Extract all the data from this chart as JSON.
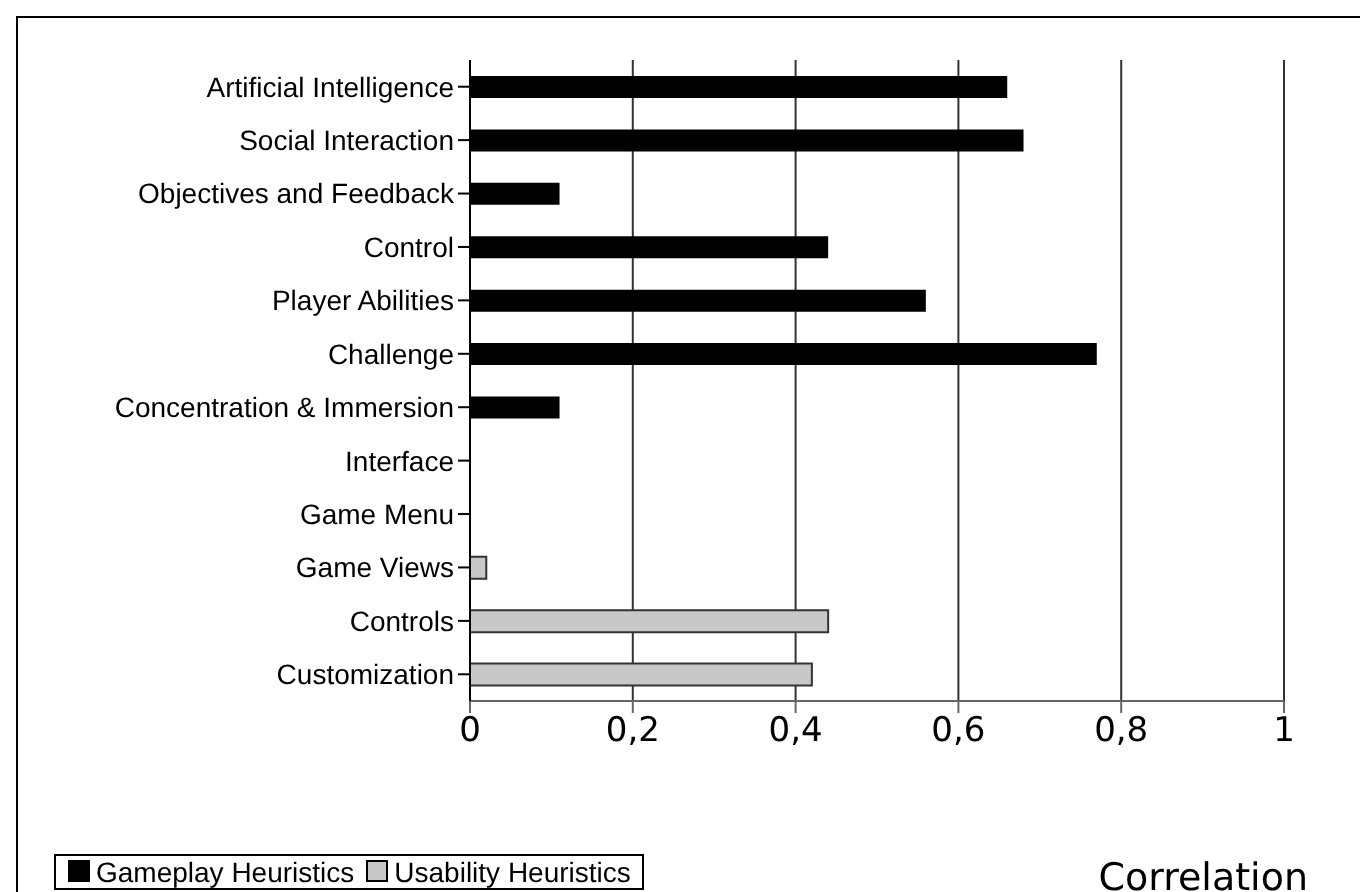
{
  "chart_data": {
    "type": "bar",
    "orientation": "horizontal",
    "xlabel": "Correlation",
    "categories": [
      "Artificial Intelligence",
      "Social Interaction",
      "Objectives and Feedback",
      "Control",
      "Player Abilities",
      "Challenge",
      "Concentration & Immersion",
      "Interface",
      "Game Menu",
      "Game Views",
      "Controls",
      "Customization"
    ],
    "series": [
      {
        "name": "Gameplay Heuristics",
        "color": "#000000",
        "values": [
          0.66,
          0.68,
          0.11,
          0.44,
          0.56,
          0.77,
          0.11,
          null,
          null,
          null,
          null,
          null
        ]
      },
      {
        "name": "Usability Heuristics",
        "color": "#c8c8c8",
        "values": [
          null,
          null,
          null,
          null,
          null,
          null,
          null,
          0,
          0,
          0.02,
          0.44,
          0.42
        ]
      }
    ],
    "xlim": [
      0,
      1
    ],
    "xticks": [
      0,
      {
        "value": 0.2,
        "label": "0,2"
      },
      {
        "value": 0.4,
        "label": "0,4"
      },
      {
        "value": 0.6,
        "label": "0,6"
      },
      {
        "value": 0.8,
        "label": "0,8"
      },
      1
    ],
    "grid": "x",
    "legend": "bottom left"
  }
}
